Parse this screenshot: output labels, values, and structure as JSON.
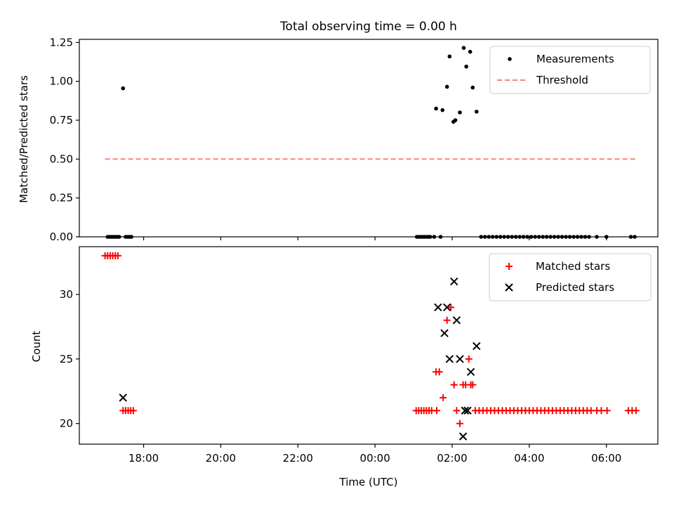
{
  "chart_data": [
    {
      "type": "scatter",
      "title": "Total observing time = 0.00 h",
      "xlabel": "",
      "ylabel": "Matched/Predicted stars",
      "xlim": [
        "16:20",
        "07:20"
      ],
      "ylim": [
        0,
        1.27
      ],
      "x_ticks": [
        "18:00",
        "20:00",
        "22:00",
        "00:00",
        "02:00",
        "04:00",
        "06:00"
      ],
      "x_tick_labels_visible": false,
      "y_ticks": [
        "0.00",
        "0.25",
        "0.50",
        "0.75",
        "1.00",
        "1.25"
      ],
      "legend": {
        "position": "top-right",
        "entries": [
          "Measurements",
          "Threshold"
        ]
      },
      "series": [
        {
          "name": "Measurements",
          "marker": "dot",
          "color": "#000000",
          "points": [
            {
              "x": "17:04",
              "y": 0.0
            },
            {
              "x": "17:07",
              "y": 0.0
            },
            {
              "x": "17:10",
              "y": 0.0
            },
            {
              "x": "17:13",
              "y": 0.0
            },
            {
              "x": "17:16",
              "y": 0.0
            },
            {
              "x": "17:19",
              "y": 0.0
            },
            {
              "x": "17:22",
              "y": 0.0
            },
            {
              "x": "17:28",
              "y": 0.955
            },
            {
              "x": "17:32",
              "y": 0.0
            },
            {
              "x": "17:35",
              "y": 0.0
            },
            {
              "x": "17:38",
              "y": 0.0
            },
            {
              "x": "17:41",
              "y": 0.0
            },
            {
              "x": "01:05",
              "y": 0.0
            },
            {
              "x": "01:08",
              "y": 0.0
            },
            {
              "x": "01:11",
              "y": 0.0
            },
            {
              "x": "01:14",
              "y": 0.0
            },
            {
              "x": "01:17",
              "y": 0.0
            },
            {
              "x": "01:20",
              "y": 0.0
            },
            {
              "x": "01:23",
              "y": 0.0
            },
            {
              "x": "01:26",
              "y": 0.0
            },
            {
              "x": "01:32",
              "y": 0.0
            },
            {
              "x": "01:35",
              "y": 0.825
            },
            {
              "x": "01:42",
              "y": 0.0
            },
            {
              "x": "01:45",
              "y": 0.815
            },
            {
              "x": "01:52",
              "y": 0.965
            },
            {
              "x": "01:56",
              "y": 1.16
            },
            {
              "x": "02:02",
              "y": 0.74
            },
            {
              "x": "02:05",
              "y": 0.75
            },
            {
              "x": "02:12",
              "y": 0.8
            },
            {
              "x": "02:18",
              "y": 1.215
            },
            {
              "x": "02:22",
              "y": 1.095
            },
            {
              "x": "02:28",
              "y": 1.19
            },
            {
              "x": "02:32",
              "y": 0.96
            },
            {
              "x": "02:38",
              "y": 0.805
            },
            {
              "x": "02:45",
              "y": 0.0
            },
            {
              "x": "02:51",
              "y": 0.0
            },
            {
              "x": "02:57",
              "y": 0.0
            },
            {
              "x": "03:03",
              "y": 0.0
            },
            {
              "x": "03:09",
              "y": 0.0
            },
            {
              "x": "03:15",
              "y": 0.0
            },
            {
              "x": "03:21",
              "y": 0.0
            },
            {
              "x": "03:27",
              "y": 0.0
            },
            {
              "x": "03:33",
              "y": 0.0
            },
            {
              "x": "03:39",
              "y": 0.0
            },
            {
              "x": "03:45",
              "y": 0.0
            },
            {
              "x": "03:51",
              "y": 0.0
            },
            {
              "x": "03:57",
              "y": 0.0
            },
            {
              "x": "04:03",
              "y": 0.0
            },
            {
              "x": "04:09",
              "y": 0.0
            },
            {
              "x": "04:15",
              "y": 0.0
            },
            {
              "x": "04:21",
              "y": 0.0
            },
            {
              "x": "04:27",
              "y": 0.0
            },
            {
              "x": "04:33",
              "y": 0.0
            },
            {
              "x": "04:39",
              "y": 0.0
            },
            {
              "x": "04:45",
              "y": 0.0
            },
            {
              "x": "04:51",
              "y": 0.0
            },
            {
              "x": "04:57",
              "y": 0.0
            },
            {
              "x": "05:03",
              "y": 0.0
            },
            {
              "x": "05:09",
              "y": 0.0
            },
            {
              "x": "05:15",
              "y": 0.0
            },
            {
              "x": "05:21",
              "y": 0.0
            },
            {
              "x": "05:27",
              "y": 0.0
            },
            {
              "x": "05:33",
              "y": 0.0
            },
            {
              "x": "05:45",
              "y": 0.0
            },
            {
              "x": "06:00",
              "y": 0.0
            },
            {
              "x": "06:38",
              "y": 0.0
            },
            {
              "x": "06:44",
              "y": 0.0
            }
          ]
        },
        {
          "name": "Threshold",
          "marker": "dashed-line",
          "color": "#ff7f7f",
          "points": [
            {
              "x": "17:00",
              "y": 0.5
            },
            {
              "x": "06:45",
              "y": 0.5
            }
          ]
        }
      ]
    },
    {
      "type": "scatter",
      "title": "",
      "xlabel": "Time (UTC)",
      "ylabel": "Count",
      "xlim": [
        "16:20",
        "07:20"
      ],
      "ylim": [
        18.4,
        33.7
      ],
      "x_ticks": [
        "18:00",
        "20:00",
        "22:00",
        "00:00",
        "02:00",
        "04:00",
        "06:00"
      ],
      "y_ticks": [
        "20",
        "25",
        "30"
      ],
      "legend": {
        "position": "top-right",
        "entries": [
          "Matched stars",
          "Predicted stars"
        ]
      },
      "series": [
        {
          "name": "Matched stars",
          "marker": "plus",
          "color": "#ff0000",
          "points": [
            {
              "x": "17:00",
              "y": 33
            },
            {
              "x": "17:04",
              "y": 33
            },
            {
              "x": "17:08",
              "y": 33
            },
            {
              "x": "17:12",
              "y": 33
            },
            {
              "x": "17:16",
              "y": 33
            },
            {
              "x": "17:20",
              "y": 33
            },
            {
              "x": "17:28",
              "y": 21
            },
            {
              "x": "17:32",
              "y": 21
            },
            {
              "x": "17:36",
              "y": 21
            },
            {
              "x": "17:40",
              "y": 21
            },
            {
              "x": "17:44",
              "y": 21
            },
            {
              "x": "01:04",
              "y": 21
            },
            {
              "x": "01:08",
              "y": 21
            },
            {
              "x": "01:12",
              "y": 21
            },
            {
              "x": "01:16",
              "y": 21
            },
            {
              "x": "01:20",
              "y": 21
            },
            {
              "x": "01:24",
              "y": 21
            },
            {
              "x": "01:28",
              "y": 21
            },
            {
              "x": "01:36",
              "y": 21
            },
            {
              "x": "01:35",
              "y": 24
            },
            {
              "x": "01:40",
              "y": 24
            },
            {
              "x": "01:46",
              "y": 22
            },
            {
              "x": "01:52",
              "y": 28
            },
            {
              "x": "01:58",
              "y": 29
            },
            {
              "x": "02:03",
              "y": 23
            },
            {
              "x": "02:07",
              "y": 21
            },
            {
              "x": "02:12",
              "y": 20
            },
            {
              "x": "02:17",
              "y": 23
            },
            {
              "x": "02:21",
              "y": 23
            },
            {
              "x": "02:26",
              "y": 25
            },
            {
              "x": "02:29",
              "y": 23
            },
            {
              "x": "02:32",
              "y": 23
            },
            {
              "x": "02:36",
              "y": 21
            },
            {
              "x": "02:42",
              "y": 21
            },
            {
              "x": "02:48",
              "y": 21
            },
            {
              "x": "02:54",
              "y": 21
            },
            {
              "x": "03:00",
              "y": 21
            },
            {
              "x": "03:06",
              "y": 21
            },
            {
              "x": "03:12",
              "y": 21
            },
            {
              "x": "03:18",
              "y": 21
            },
            {
              "x": "03:24",
              "y": 21
            },
            {
              "x": "03:30",
              "y": 21
            },
            {
              "x": "03:36",
              "y": 21
            },
            {
              "x": "03:42",
              "y": 21
            },
            {
              "x": "03:48",
              "y": 21
            },
            {
              "x": "03:54",
              "y": 21
            },
            {
              "x": "04:00",
              "y": 21
            },
            {
              "x": "04:06",
              "y": 21
            },
            {
              "x": "04:12",
              "y": 21
            },
            {
              "x": "04:18",
              "y": 21
            },
            {
              "x": "04:24",
              "y": 21
            },
            {
              "x": "04:30",
              "y": 21
            },
            {
              "x": "04:36",
              "y": 21
            },
            {
              "x": "04:42",
              "y": 21
            },
            {
              "x": "04:48",
              "y": 21
            },
            {
              "x": "04:54",
              "y": 21
            },
            {
              "x": "05:00",
              "y": 21
            },
            {
              "x": "05:06",
              "y": 21
            },
            {
              "x": "05:12",
              "y": 21
            },
            {
              "x": "05:18",
              "y": 21
            },
            {
              "x": "05:24",
              "y": 21
            },
            {
              "x": "05:30",
              "y": 21
            },
            {
              "x": "05:36",
              "y": 21
            },
            {
              "x": "05:45",
              "y": 21
            },
            {
              "x": "05:52",
              "y": 21
            },
            {
              "x": "06:01",
              "y": 21
            },
            {
              "x": "06:34",
              "y": 21
            },
            {
              "x": "06:40",
              "y": 21
            },
            {
              "x": "06:46",
              "y": 21
            }
          ]
        },
        {
          "name": "Predicted stars",
          "marker": "x",
          "color": "#000000",
          "points": [
            {
              "x": "17:28",
              "y": 22
            },
            {
              "x": "01:38",
              "y": 29
            },
            {
              "x": "01:48",
              "y": 27
            },
            {
              "x": "01:52",
              "y": 29
            },
            {
              "x": "01:56",
              "y": 25
            },
            {
              "x": "02:03",
              "y": 31
            },
            {
              "x": "02:07",
              "y": 28
            },
            {
              "x": "02:12",
              "y": 25
            },
            {
              "x": "02:17",
              "y": 19
            },
            {
              "x": "02:20",
              "y": 21
            },
            {
              "x": "02:24",
              "y": 21
            },
            {
              "x": "02:29",
              "y": 24
            },
            {
              "x": "02:38",
              "y": 26
            }
          ]
        }
      ]
    }
  ]
}
